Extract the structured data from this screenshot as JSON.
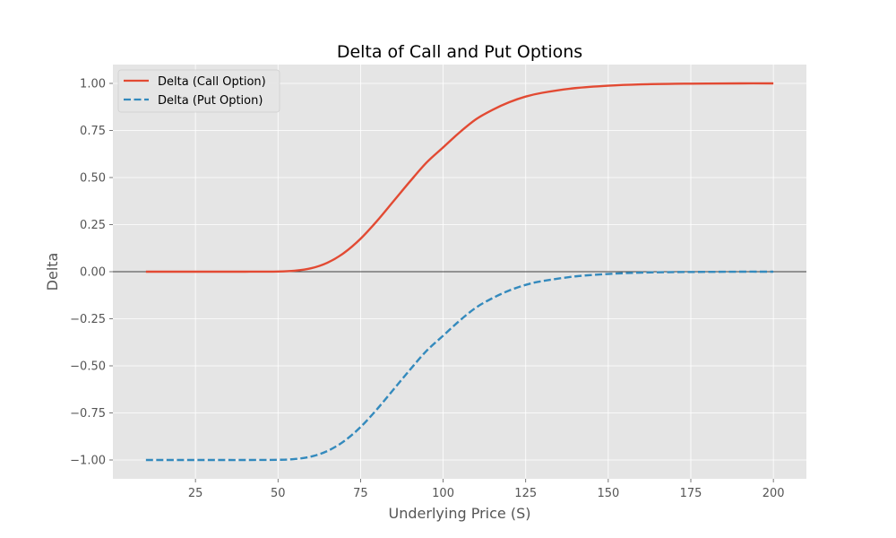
{
  "chart_data": {
    "type": "line",
    "title": "Delta of Call and Put Options",
    "xlabel": "Underlying Price (S)",
    "ylabel": "Delta",
    "xlim": [
      0,
      210
    ],
    "ylim": [
      -1.1,
      1.1
    ],
    "x_ticks": [
      25,
      50,
      75,
      100,
      125,
      150,
      175,
      200
    ],
    "x_tick_labels": [
      "25",
      "50",
      "75",
      "100",
      "125",
      "150",
      "175",
      "200"
    ],
    "y_ticks": [
      -1.0,
      -0.75,
      -0.5,
      -0.25,
      0.0,
      0.25,
      0.5,
      0.75,
      1.0
    ],
    "y_tick_labels": [
      "−1.00",
      "−0.75",
      "−0.50",
      "−0.25",
      "0.00",
      "0.25",
      "0.50",
      "0.75",
      "1.00"
    ],
    "grid": true,
    "legend_position": "top-left",
    "reference_line_y": 0,
    "x": [
      10,
      20,
      30,
      40,
      50,
      55,
      60,
      65,
      70,
      75,
      80,
      85,
      90,
      95,
      100,
      105,
      110,
      115,
      120,
      125,
      130,
      140,
      150,
      160,
      170,
      180,
      190,
      200
    ],
    "series": [
      {
        "name": "Delta (Call Option)",
        "color": "#E24A33",
        "style": "solid",
        "values": [
          0.0,
          0.0,
          0.0,
          0.0,
          0.001,
          0.005,
          0.018,
          0.048,
          0.1,
          0.175,
          0.27,
          0.375,
          0.48,
          0.58,
          0.66,
          0.74,
          0.81,
          0.86,
          0.9,
          0.93,
          0.95,
          0.975,
          0.988,
          0.995,
          0.998,
          0.999,
          1.0,
          1.0
        ]
      },
      {
        "name": "Delta (Put Option)",
        "color": "#348ABD",
        "style": "dashed",
        "values": [
          -1.0,
          -1.0,
          -1.0,
          -1.0,
          -0.999,
          -0.995,
          -0.982,
          -0.952,
          -0.9,
          -0.825,
          -0.73,
          -0.625,
          -0.52,
          -0.42,
          -0.34,
          -0.26,
          -0.19,
          -0.14,
          -0.1,
          -0.07,
          -0.05,
          -0.025,
          -0.012,
          -0.005,
          -0.002,
          -0.001,
          0.0,
          0.0
        ]
      }
    ]
  },
  "colors": {
    "plot_background": "#E5E5E5",
    "grid": "#FFFFFF",
    "zero_line": "#000000"
  }
}
